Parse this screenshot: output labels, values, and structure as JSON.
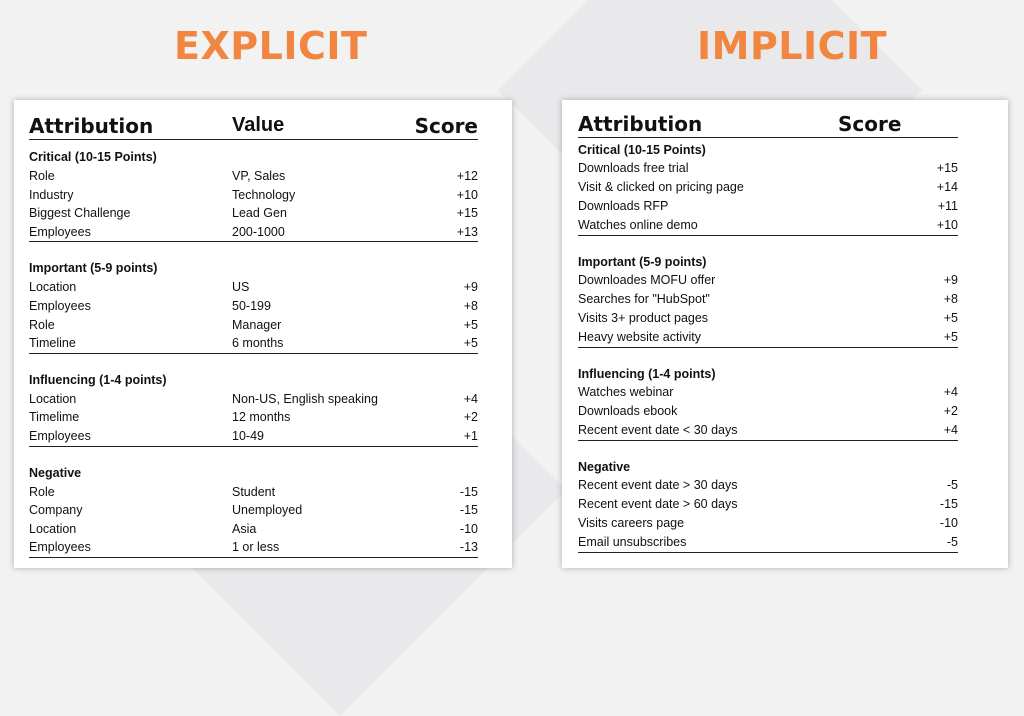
{
  "explicit": {
    "heading": "EXPLICIT",
    "headers": {
      "attribution": "Attribution",
      "value": "Value",
      "score": "Score"
    },
    "groups": [
      {
        "title": "Critical (10-15 Points)",
        "rows": [
          {
            "attribution": "Role",
            "value": "VP, Sales",
            "score": "+12"
          },
          {
            "attribution": "Industry",
            "value": "Technology",
            "score": "+10"
          },
          {
            "attribution": "Biggest Challenge",
            "value": "Lead Gen",
            "score": "+15"
          },
          {
            "attribution": "Employees",
            "value": "200-1000",
            "score": "+13"
          }
        ]
      },
      {
        "title": "Important (5-9 points)",
        "rows": [
          {
            "attribution": "Location",
            "value": "US",
            "score": "+9"
          },
          {
            "attribution": "Employees",
            "value": "50-199",
            "score": "+8"
          },
          {
            "attribution": "Role",
            "value": "Manager",
            "score": "+5"
          },
          {
            "attribution": "Timeline",
            "value": "6 months",
            "score": "+5"
          }
        ]
      },
      {
        "title": "Influencing (1-4 points)",
        "rows": [
          {
            "attribution": "Location",
            "value": "Non-US, English speaking",
            "score": "+4"
          },
          {
            "attribution": "Timelime",
            "value": "12 months",
            "score": "+2"
          },
          {
            "attribution": "Employees",
            "value": "10-49",
            "score": "+1"
          }
        ]
      },
      {
        "title": "Negative",
        "rows": [
          {
            "attribution": "Role",
            "value": "Student",
            "score": "-15"
          },
          {
            "attribution": "Company",
            "value": "Unemployed",
            "score": "-15"
          },
          {
            "attribution": "Location",
            "value": "Asia",
            "score": "-10"
          },
          {
            "attribution": "Employees",
            "value": "1 or less",
            "score": "-13"
          }
        ]
      }
    ]
  },
  "implicit": {
    "heading": "IMPLICIT",
    "headers": {
      "attribution": "Attribution",
      "score": "Score"
    },
    "groups": [
      {
        "title": "Critical (10-15 Points)",
        "rows": [
          {
            "attribution": "Downloads free trial",
            "score": "+15"
          },
          {
            "attribution": "Visit & clicked on pricing page",
            "score": "+14"
          },
          {
            "attribution": "Downloads RFP",
            "score": "+11"
          },
          {
            "attribution": "Watches online demo",
            "score": "+10"
          }
        ]
      },
      {
        "title": "Important (5-9 points)",
        "rows": [
          {
            "attribution": "Downloades MOFU offer",
            "score": "+9"
          },
          {
            "attribution": "Searches for \"HubSpot\"",
            "score": "+8"
          },
          {
            "attribution": "Visits 3+ product pages",
            "score": "+5"
          },
          {
            "attribution": "Heavy website activity",
            "score": "+5"
          }
        ]
      },
      {
        "title": "Influencing (1-4 points)",
        "rows": [
          {
            "attribution": "Watches webinar",
            "score": "+4"
          },
          {
            "attribution": "Downloads ebook",
            "score": "+2"
          },
          {
            "attribution": "Recent event date < 30 days",
            "score": "+4"
          }
        ]
      },
      {
        "title": "Negative",
        "rows": [
          {
            "attribution": "Recent event date > 30 days",
            "score": "-5"
          },
          {
            "attribution": "Recent event date > 60 days",
            "score": "-15"
          },
          {
            "attribution": "Visits careers page",
            "score": "-10"
          },
          {
            "attribution": "Email unsubscribes",
            "score": "-5"
          }
        ]
      }
    ]
  }
}
